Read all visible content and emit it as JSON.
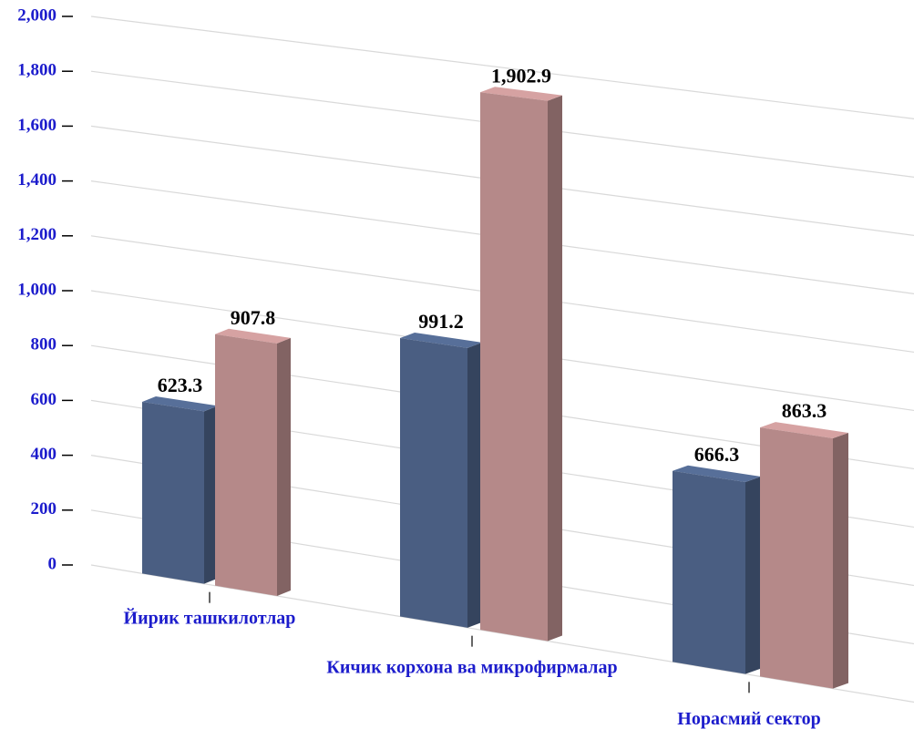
{
  "chart_data": {
    "type": "bar3d",
    "categories": [
      "Йирик ташкилотлар",
      "Кичик корхона ва микрофирмалар",
      "Норасмий сектор"
    ],
    "series": [
      {
        "color": "#4a5e82",
        "values": [
          623.3,
          991.2,
          666.3
        ]
      },
      {
        "color": "#b58989",
        "values": [
          907.8,
          1902.9,
          863.3
        ],
        "value_labels": [
          "907.8",
          "1,902.9",
          "863.3"
        ]
      }
    ],
    "ylim": [
      0,
      2000
    ],
    "yticks": [
      0,
      200,
      400,
      600,
      800,
      {
        "value": 1000,
        "label": "1,000"
      },
      {
        "value": 1200,
        "label": "1,200"
      },
      {
        "value": 1400,
        "label": "1,400"
      },
      {
        "value": 1600,
        "label": "1,600"
      },
      {
        "value": 1800,
        "label": "1,800"
      },
      {
        "value": 2000,
        "label": "2,000"
      }
    ],
    "grid": true
  }
}
